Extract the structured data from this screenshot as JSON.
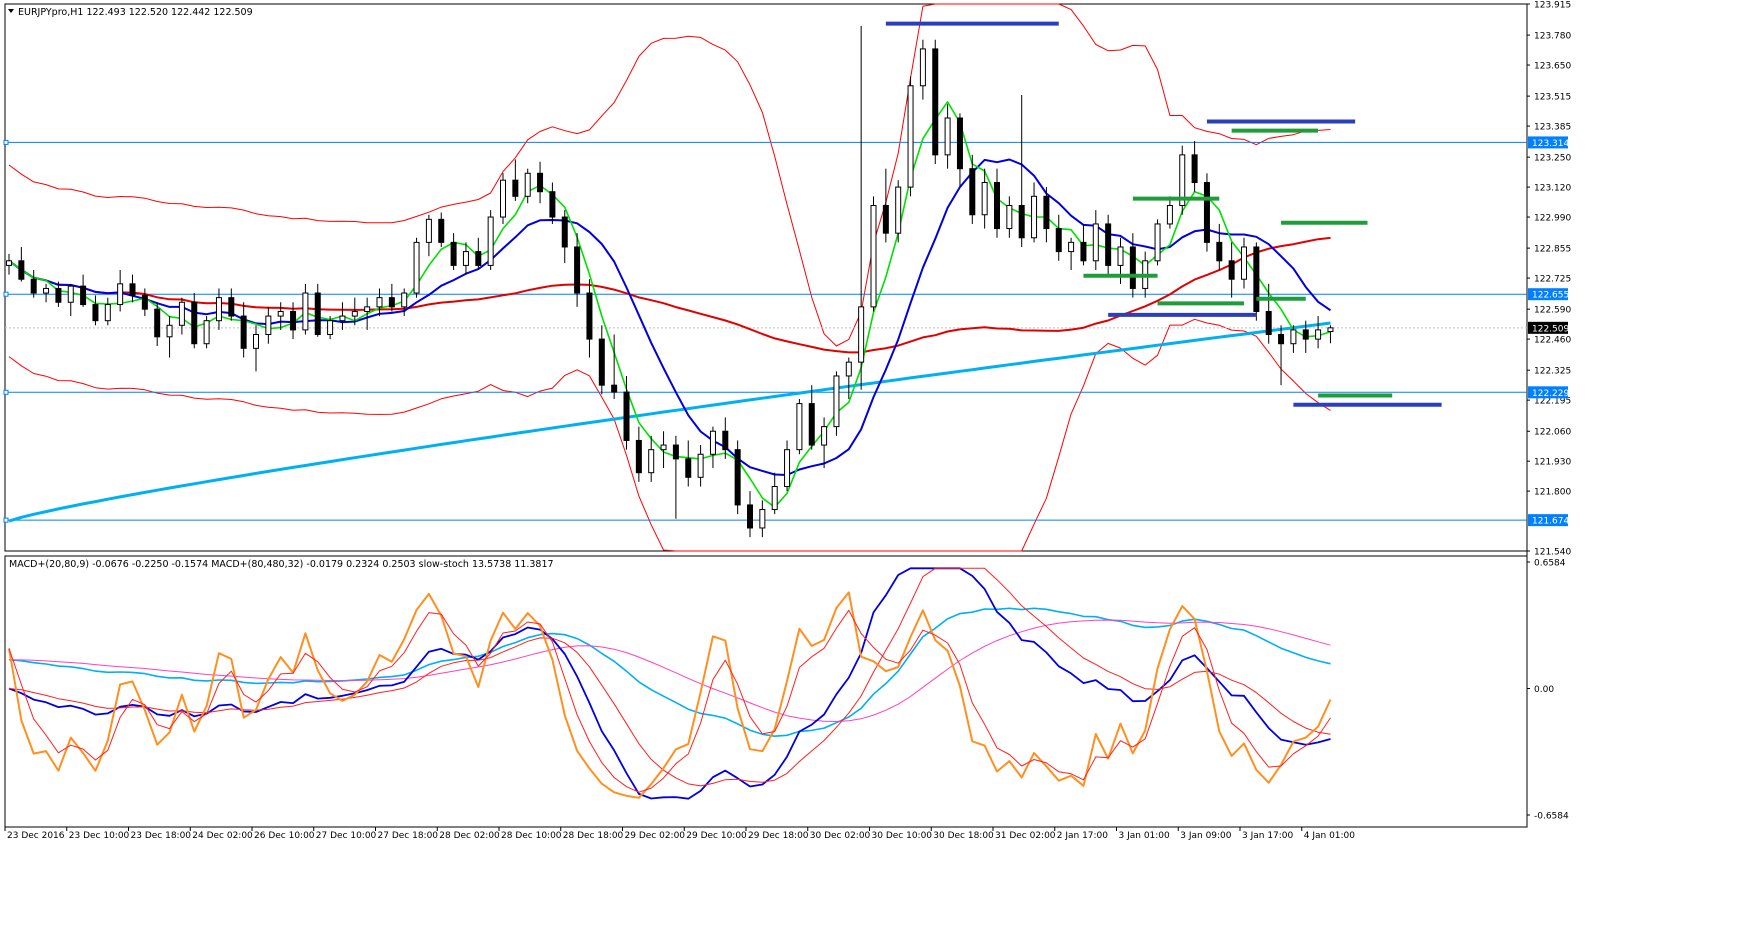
{
  "chart_data": {
    "type": "candlestick",
    "symbol_label": "EURJPYpro,H1",
    "ohlc_readout": "122.493 122.520 122.442 122.509",
    "colors": {
      "background": "#ffffff",
      "border": "#000000",
      "candle_up": "#ffffff",
      "candle_down": "#000000",
      "sma_fast": "#00e000",
      "sma_mid": "#0000e0",
      "sma_slow": "#e00000",
      "sma_long": "#00b0f0",
      "bollinger": "#ff0000",
      "hline": "#0080ff",
      "level_blue": "#2b3fbd",
      "level_green": "#1f9d3a",
      "macd_fast": "#0000e0",
      "macd_fast_signal": "#ff2020",
      "macd_slow": "#00b0f0",
      "macd_slow_signal": "#ff40c0",
      "stoch_main": "#ff9020",
      "stoch_signal": "#ff2020"
    },
    "price_axis": {
      "min": 121.54,
      "max": 123.915,
      "ticks": [
        "123.915",
        "123.780",
        "123.650",
        "123.515",
        "123.385",
        "123.250",
        "123.120",
        "122.990",
        "122.855",
        "122.725",
        "122.590",
        "122.460",
        "122.325",
        "122.195",
        "122.060",
        "121.930",
        "121.800",
        "121.540"
      ]
    },
    "current_price": "122.509",
    "horizontal_lines": [
      {
        "label": "123.314",
        "value": 123.314
      },
      {
        "label": "122.655",
        "value": 122.655
      },
      {
        "label": "122.229",
        "value": 122.229
      },
      {
        "label": "121.674",
        "value": 121.674
      }
    ],
    "level_segments": [
      {
        "color": "blue",
        "bar_from": 71,
        "bar_to": 85,
        "value": 123.83
      },
      {
        "color": "blue",
        "bar_from": 97,
        "bar_to": 109,
        "value": 123.405
      },
      {
        "color": "green",
        "bar_from": 99,
        "bar_to": 106,
        "value": 123.365
      },
      {
        "color": "green",
        "bar_from": 91,
        "bar_to": 98,
        "value": 123.07
      },
      {
        "color": "green",
        "bar_from": 103,
        "bar_to": 110,
        "value": 122.965
      },
      {
        "color": "green",
        "bar_from": 87,
        "bar_to": 93,
        "value": 122.735
      },
      {
        "color": "green",
        "bar_from": 93,
        "bar_to": 100,
        "value": 122.615
      },
      {
        "color": "green",
        "bar_from": 101,
        "bar_to": 105,
        "value": 122.635
      },
      {
        "color": "blue",
        "bar_from": 89,
        "bar_to": 101,
        "value": 122.565
      },
      {
        "color": "green",
        "bar_from": 106,
        "bar_to": 112,
        "value": 122.215
      },
      {
        "color": "blue",
        "bar_from": 104,
        "bar_to": 116,
        "value": 122.175
      }
    ],
    "time_axis": {
      "labels": [
        "23 Dec 2016",
        "23 Dec 10:00",
        "23 Dec 18:00",
        "24 Dec 02:00",
        "26 Dec 10:00",
        "27 Dec 10:00",
        "27 Dec 18:00",
        "28 Dec 02:00",
        "28 Dec 10:00",
        "28 Dec 18:00",
        "29 Dec 02:00",
        "29 Dec 10:00",
        "29 Dec 18:00",
        "30 Dec 02:00",
        "30 Dec 10:00",
        "30 Dec 18:00",
        "31 Dec 02:00",
        "2 Jan 17:00",
        "3 Jan 01:00",
        "3 Jan 09:00",
        "3 Jan 17:00",
        "4 Jan 01:00"
      ],
      "label_bar_index": [
        0,
        5,
        10,
        15,
        20,
        25,
        30,
        35,
        40,
        45,
        50,
        55,
        60,
        65,
        70,
        75,
        80,
        85,
        90,
        95,
        100,
        105
      ]
    },
    "candles": [
      [
        122.78,
        122.83,
        122.74,
        122.8
      ],
      [
        122.8,
        122.86,
        122.71,
        122.72
      ],
      [
        122.72,
        122.76,
        122.64,
        122.66
      ],
      [
        122.66,
        122.7,
        122.62,
        122.68
      ],
      [
        122.68,
        122.71,
        122.6,
        122.62
      ],
      [
        122.62,
        122.7,
        122.56,
        122.69
      ],
      [
        122.69,
        122.74,
        122.6,
        122.61
      ],
      [
        122.61,
        122.65,
        122.52,
        122.54
      ],
      [
        122.54,
        122.64,
        122.52,
        122.61
      ],
      [
        122.61,
        122.76,
        122.58,
        122.7
      ],
      [
        122.7,
        122.74,
        122.62,
        122.65
      ],
      [
        122.65,
        122.68,
        122.56,
        122.59
      ],
      [
        122.59,
        122.62,
        122.43,
        122.47
      ],
      [
        122.47,
        122.56,
        122.38,
        122.52
      ],
      [
        122.52,
        122.64,
        122.48,
        122.62
      ],
      [
        122.62,
        122.66,
        122.42,
        122.44
      ],
      [
        122.44,
        122.56,
        122.42,
        122.54
      ],
      [
        122.54,
        122.68,
        122.5,
        122.64
      ],
      [
        122.64,
        122.68,
        122.54,
        122.56
      ],
      [
        122.56,
        122.62,
        122.38,
        122.42
      ],
      [
        122.42,
        122.52,
        122.32,
        122.48
      ],
      [
        122.48,
        122.6,
        122.44,
        122.56
      ],
      [
        122.56,
        122.62,
        122.5,
        122.58
      ],
      [
        122.58,
        122.62,
        122.46,
        122.5
      ],
      [
        122.5,
        122.7,
        122.48,
        122.66
      ],
      [
        122.66,
        122.7,
        122.47,
        122.48
      ],
      [
        122.48,
        122.56,
        122.46,
        122.54
      ],
      [
        122.54,
        122.62,
        122.5,
        122.56
      ],
      [
        122.56,
        122.64,
        122.52,
        122.58
      ],
      [
        122.58,
        122.64,
        122.5,
        122.6
      ],
      [
        122.6,
        122.68,
        122.56,
        122.64
      ],
      [
        122.64,
        122.7,
        122.58,
        122.6
      ],
      [
        122.6,
        122.68,
        122.56,
        122.66
      ],
      [
        122.66,
        122.9,
        122.64,
        122.88
      ],
      [
        122.88,
        123.0,
        122.82,
        122.98
      ],
      [
        122.98,
        123.01,
        122.86,
        122.88
      ],
      [
        122.88,
        122.92,
        122.76,
        122.78
      ],
      [
        122.78,
        122.88,
        122.74,
        122.84
      ],
      [
        122.84,
        122.9,
        122.76,
        122.78
      ],
      [
        122.78,
        123.02,
        122.76,
        122.99
      ],
      [
        122.99,
        123.18,
        122.96,
        123.15
      ],
      [
        123.15,
        123.24,
        123.06,
        123.08
      ],
      [
        123.08,
        123.2,
        123.05,
        123.18
      ],
      [
        123.18,
        123.23,
        123.05,
        123.1
      ],
      [
        123.1,
        123.14,
        122.96,
        122.99
      ],
      [
        122.99,
        123.02,
        122.79,
        122.86
      ],
      [
        122.86,
        122.92,
        122.6,
        122.66
      ],
      [
        122.66,
        122.72,
        122.38,
        122.46
      ],
      [
        122.46,
        122.52,
        122.22,
        122.26
      ],
      [
        122.26,
        122.48,
        122.2,
        122.23
      ],
      [
        122.23,
        122.3,
        121.98,
        122.02
      ],
      [
        122.02,
        122.08,
        121.84,
        121.88
      ],
      [
        121.88,
        122.04,
        121.84,
        121.98
      ],
      [
        121.98,
        122.06,
        121.9,
        122.0
      ],
      [
        122.0,
        122.04,
        121.68,
        121.94
      ],
      [
        121.94,
        122.02,
        121.82,
        121.86
      ],
      [
        121.86,
        122.0,
        121.82,
        121.96
      ],
      [
        121.96,
        122.08,
        121.9,
        122.06
      ],
      [
        122.06,
        122.12,
        121.94,
        121.98
      ],
      [
        121.98,
        122.02,
        121.7,
        121.74
      ],
      [
        121.74,
        121.8,
        121.6,
        121.64
      ],
      [
        121.64,
        121.76,
        121.6,
        121.72
      ],
      [
        121.72,
        121.88,
        121.7,
        121.82
      ],
      [
        121.82,
        122.02,
        121.8,
        121.98
      ],
      [
        121.98,
        122.2,
        121.96,
        122.18
      ],
      [
        122.18,
        122.26,
        121.98,
        122.0
      ],
      [
        122.0,
        122.12,
        121.9,
        122.08
      ],
      [
        122.08,
        122.32,
        122.04,
        122.3
      ],
      [
        122.3,
        122.38,
        122.2,
        122.36
      ],
      [
        122.36,
        123.82,
        122.24,
        122.6
      ],
      [
        122.6,
        123.08,
        122.58,
        123.04
      ],
      [
        123.04,
        123.2,
        122.88,
        122.92
      ],
      [
        122.92,
        123.15,
        122.88,
        123.12
      ],
      [
        123.12,
        123.6,
        123.08,
        123.56
      ],
      [
        123.56,
        123.76,
        123.5,
        123.72
      ],
      [
        123.72,
        123.76,
        123.22,
        123.26
      ],
      [
        123.26,
        123.48,
        123.2,
        123.42
      ],
      [
        123.42,
        123.44,
        123.12,
        123.2
      ],
      [
        123.2,
        123.26,
        122.96,
        123.0
      ],
      [
        123.0,
        123.2,
        122.94,
        123.14
      ],
      [
        123.14,
        123.2,
        122.9,
        122.94
      ],
      [
        122.94,
        123.08,
        122.9,
        123.04
      ],
      [
        123.04,
        123.52,
        122.86,
        122.9
      ],
      [
        122.9,
        123.14,
        122.88,
        123.08
      ],
      [
        123.08,
        123.12,
        122.88,
        122.94
      ],
      [
        122.94,
        123.0,
        122.8,
        122.84
      ],
      [
        122.84,
        122.9,
        122.76,
        122.88
      ],
      [
        122.88,
        122.96,
        122.78,
        122.8
      ],
      [
        122.8,
        123.02,
        122.76,
        122.96
      ],
      [
        122.96,
        123.0,
        122.74,
        122.78
      ],
      [
        122.78,
        122.9,
        122.7,
        122.86
      ],
      [
        122.86,
        122.92,
        122.64,
        122.68
      ],
      [
        122.68,
        122.84,
        122.64,
        122.8
      ],
      [
        122.8,
        122.98,
        122.78,
        122.96
      ],
      [
        122.96,
        123.08,
        122.94,
        123.04
      ],
      [
        123.04,
        123.3,
        123.0,
        123.26
      ],
      [
        123.26,
        123.32,
        123.1,
        123.14
      ],
      [
        123.14,
        123.18,
        122.84,
        122.88
      ],
      [
        122.88,
        122.96,
        122.76,
        122.8
      ],
      [
        122.8,
        122.88,
        122.64,
        122.72
      ],
      [
        122.72,
        122.9,
        122.68,
        122.86
      ],
      [
        122.86,
        122.88,
        122.54,
        122.58
      ],
      [
        122.58,
        122.7,
        122.44,
        122.48
      ],
      [
        122.48,
        122.52,
        122.26,
        122.44
      ],
      [
        122.44,
        122.52,
        122.4,
        122.5
      ],
      [
        122.5,
        122.54,
        122.4,
        122.46
      ],
      [
        122.46,
        122.56,
        122.42,
        122.5
      ],
      [
        122.493,
        122.52,
        122.442,
        122.509
      ]
    ],
    "indicator_panel": {
      "label": "MACD+(20,80,9) -0.0676 -0.2250 -0.1574  MACD+(80,480,32) -0.0179 0.2324 0.2503  slow-stoch 13.5738 11.3817",
      "axis_ticks": [
        "0.6584",
        "0.00",
        "-0.6584"
      ],
      "axis_range": [
        -0.6584,
        0.6584
      ]
    }
  }
}
